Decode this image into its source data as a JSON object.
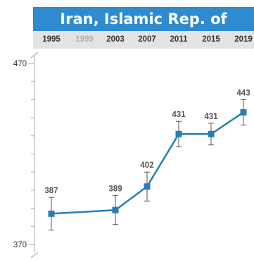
{
  "chart_data": {
    "type": "line",
    "title": "Iran, Islamic Rep. of",
    "x": [
      "1995",
      "1999",
      "2003",
      "2007",
      "2011",
      "2015",
      "2019"
    ],
    "faded_x": [
      "1999"
    ],
    "values": [
      387,
      null,
      389,
      402,
      431,
      431,
      443
    ],
    "error": [
      9,
      null,
      8,
      8,
      7,
      6,
      7
    ],
    "ylim": [
      370,
      470
    ],
    "ytick_labels": [
      "470",
      "370"
    ],
    "colors": {
      "line": "#2a7db3",
      "marker": "#2a7db3",
      "title_bg": "#2e8bd0"
    }
  }
}
